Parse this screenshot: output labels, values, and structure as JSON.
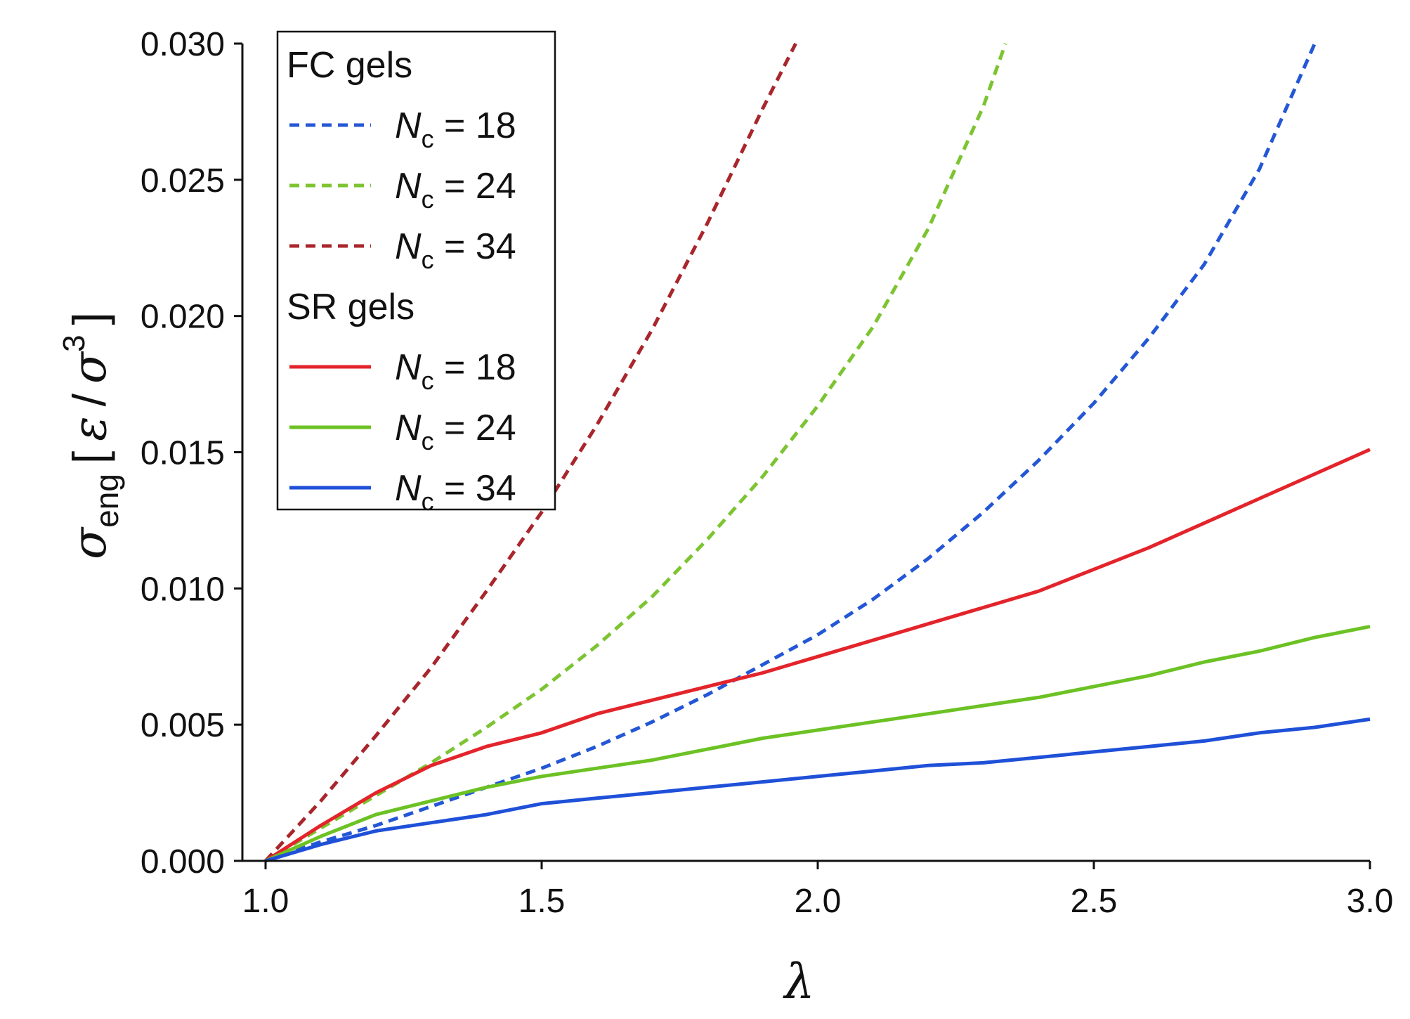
{
  "chart_data": {
    "type": "line",
    "xlabel": "λ",
    "ylabel": {
      "symbol": "σ",
      "symbol_subscript": "eng",
      "bracket_open": "[",
      "unit_numerator": "ε",
      "unit_slash": "/",
      "unit_denominator": "σ",
      "unit_power": "3",
      "bracket_close": "]"
    },
    "xlim": [
      1.0,
      3.0
    ],
    "ylim": [
      0.0,
      0.03
    ],
    "x_ticks": [
      "1.0",
      "1.5",
      "2.0",
      "2.5",
      "3.0"
    ],
    "y_ticks": [
      "0.000",
      "0.005",
      "0.010",
      "0.015",
      "0.020",
      "0.025",
      "0.030"
    ],
    "grid": false,
    "legend": {
      "placement": "top-left",
      "groups": [
        {
          "title": "FC gels",
          "entries": [
            {
              "symbol": "N",
              "subscript": "c",
              "text": " = 18",
              "color": "#2457d6",
              "dash": true
            },
            {
              "symbol": "N",
              "subscript": "c",
              "text": " = 24",
              "color": "#7cc431",
              "dash": true
            },
            {
              "symbol": "N",
              "subscript": "c",
              "text": " = 34",
              "color": "#a8262c",
              "dash": true
            }
          ]
        },
        {
          "title": "SR gels",
          "entries": [
            {
              "symbol": "N",
              "subscript": "c",
              "text": " = 18",
              "color": "#e3242b",
              "dash": false
            },
            {
              "symbol": "N",
              "subscript": "c",
              "text": " = 24",
              "color": "#6cc224",
              "dash": false
            },
            {
              "symbol": "N",
              "subscript": "c",
              "text": " = 34",
              "color": "#1f50d8",
              "dash": false
            }
          ]
        }
      ]
    },
    "series": [
      {
        "group": "FC gels",
        "color": "#2457d6",
        "dash": true,
        "x": [
          1.0,
          1.1,
          1.2,
          1.3,
          1.4,
          1.5,
          1.6,
          1.7,
          1.8,
          1.9,
          2.0,
          2.1,
          2.2,
          2.3,
          2.4,
          2.5,
          2.6,
          2.7,
          2.8,
          2.9
        ],
        "y": [
          0.0,
          0.0007,
          0.0013,
          0.002,
          0.0027,
          0.0034,
          0.0042,
          0.0051,
          0.0061,
          0.0072,
          0.0083,
          0.0096,
          0.0111,
          0.0128,
          0.0147,
          0.0168,
          0.0192,
          0.0219,
          0.0254,
          0.03
        ]
      },
      {
        "group": "FC gels",
        "color": "#7cc431",
        "dash": true,
        "x": [
          1.0,
          1.1,
          1.2,
          1.3,
          1.4,
          1.5,
          1.6,
          1.7,
          1.8,
          1.9,
          2.0,
          2.1,
          2.2,
          2.3,
          2.34
        ],
        "y": [
          0.0,
          0.0012,
          0.0024,
          0.0036,
          0.0049,
          0.0063,
          0.0079,
          0.0097,
          0.0118,
          0.0141,
          0.0167,
          0.0196,
          0.0232,
          0.0277,
          0.03
        ]
      },
      {
        "group": "FC gels",
        "color": "#a8262c",
        "dash": true,
        "x": [
          1.0,
          1.05,
          1.1,
          1.2,
          1.3,
          1.4,
          1.5,
          1.6,
          1.7,
          1.8,
          1.9,
          1.96
        ],
        "y": [
          0.0,
          0.0011,
          0.0022,
          0.0046,
          0.0071,
          0.0099,
          0.0128,
          0.016,
          0.0195,
          0.0234,
          0.0276,
          0.03
        ]
      },
      {
        "group": "SR gels",
        "color": "#e3242b",
        "dash": false,
        "x": [
          1.0,
          1.1,
          1.2,
          1.3,
          1.4,
          1.5,
          1.6,
          1.7,
          1.8,
          1.9,
          2.0,
          2.1,
          2.2,
          2.3,
          2.4,
          2.5,
          2.6,
          2.7,
          2.8,
          2.9,
          3.0
        ],
        "y": [
          0.0,
          0.0013,
          0.0025,
          0.0035,
          0.0042,
          0.0047,
          0.0054,
          0.0059,
          0.0064,
          0.0069,
          0.0075,
          0.0081,
          0.0087,
          0.0093,
          0.0099,
          0.0107,
          0.0115,
          0.0124,
          0.0133,
          0.0142,
          0.0151
        ]
      },
      {
        "group": "SR gels",
        "color": "#6cc224",
        "dash": false,
        "x": [
          1.0,
          1.1,
          1.2,
          1.3,
          1.4,
          1.5,
          1.6,
          1.7,
          1.8,
          1.9,
          2.0,
          2.1,
          2.2,
          2.3,
          2.4,
          2.5,
          2.6,
          2.7,
          2.8,
          2.9,
          3.0
        ],
        "y": [
          0.0,
          0.0009,
          0.0017,
          0.0022,
          0.0027,
          0.0031,
          0.0034,
          0.0037,
          0.0041,
          0.0045,
          0.0048,
          0.0051,
          0.0054,
          0.0057,
          0.006,
          0.0064,
          0.0068,
          0.0073,
          0.0077,
          0.0082,
          0.0086
        ]
      },
      {
        "group": "SR gels",
        "color": "#1f50d8",
        "dash": false,
        "x": [
          1.0,
          1.1,
          1.2,
          1.3,
          1.4,
          1.5,
          1.6,
          1.7,
          1.8,
          1.9,
          2.0,
          2.1,
          2.2,
          2.3,
          2.4,
          2.5,
          2.6,
          2.7,
          2.8,
          2.9,
          3.0
        ],
        "y": [
          0.0,
          0.0006,
          0.0011,
          0.0014,
          0.0017,
          0.0021,
          0.0023,
          0.0025,
          0.0027,
          0.0029,
          0.0031,
          0.0033,
          0.0035,
          0.0036,
          0.0038,
          0.004,
          0.0042,
          0.0044,
          0.0047,
          0.0049,
          0.0052
        ]
      }
    ]
  }
}
